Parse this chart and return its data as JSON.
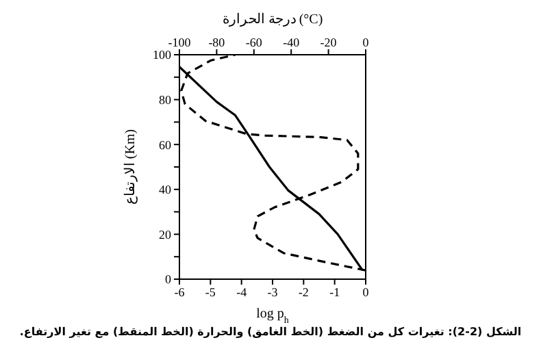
{
  "chart_data": {
    "type": "line",
    "xlabel": "log p$_{h}$",
    "x2label": "درجة الحرارة (°C)",
    "ylabel": "الارتفاع (Km)",
    "xlim": [
      -6,
      0
    ],
    "xticks": [
      -6,
      -5,
      -4,
      -3,
      -2,
      -1,
      0
    ],
    "x2lim": [
      -100,
      0
    ],
    "x2ticks": [
      -100,
      -80,
      -60,
      -40,
      -20,
      0
    ],
    "ylim": [
      0,
      100
    ],
    "yticks": [
      0,
      {
        "value": 10,
        "label": null
      },
      20,
      {
        "value": 30,
        "label": null
      },
      40,
      {
        "value": 50,
        "label": null
      },
      60,
      {
        "value": 70,
        "label": null
      },
      80,
      {
        "value": 90,
        "label": null
      },
      100
    ],
    "grid": false,
    "legend": false,
    "marker": "none",
    "series": [
      {
        "color": "#000000",
        "line_style": "solid",
        "x": [
          -0.1,
          -0.9,
          -1.5,
          -2.5,
          -3.1,
          -3.75,
          -4.2,
          -4.8,
          -6
        ],
        "values": [
          3.9,
          20,
          29,
          39.6,
          50,
          63.7,
          73,
          79,
          94.6
        ]
      },
      {
        "color": "#000000",
        "line_style": "dashed",
        "axis": "x2",
        "x": [
          0,
          -20,
          -44,
          -58,
          -60,
          -58,
          -49,
          -30,
          -12.7,
          -4.1,
          -4.1,
          -10,
          -25,
          -54,
          -64,
          -86,
          -97,
          -99,
          -95.6,
          -83,
          -70
        ],
        "values": [
          3.9,
          7.3,
          11.6,
          18.3,
          22,
          28,
          32,
          37.6,
          43.4,
          49,
          56,
          62,
          63.3,
          64,
          64.7,
          70.5,
          78,
          84,
          91.7,
          97.5,
          100
        ]
      }
    ],
    "annotations": [
      "الشكل (2-2): تغيرات كل من الضغط (الخط الغامق) والحرارة (الخط المنقط) مع تغير الارتفاع."
    ]
  }
}
